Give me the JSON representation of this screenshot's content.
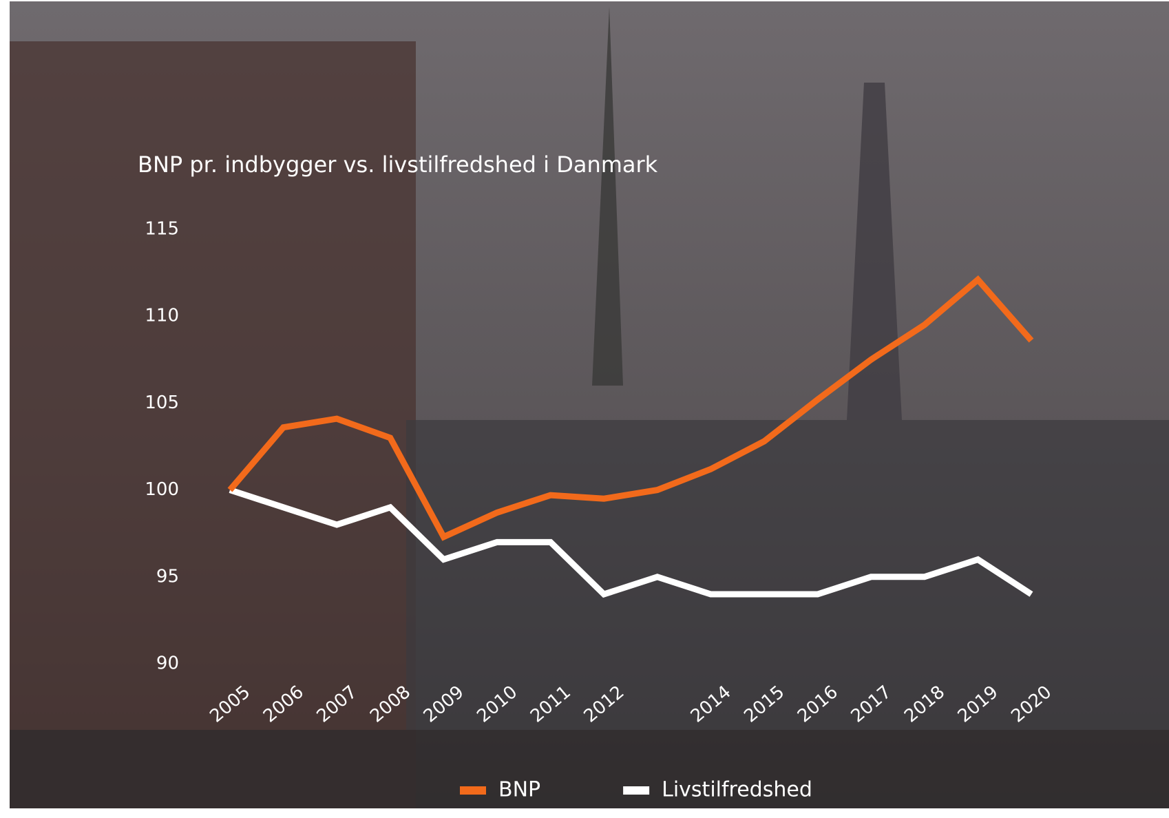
{
  "chart_data": {
    "type": "line",
    "title": "BNP pr. indbygger vs. livstilfredshed i Danmark",
    "categories": [
      "2005",
      "2006",
      "2007",
      "2008",
      "2009",
      "2010",
      "2011",
      "2012",
      null,
      "2014",
      "2015",
      "2016",
      "2017",
      "2018",
      "2019",
      "2020"
    ],
    "series": [
      {
        "name": "BNP",
        "color": "#f26a1b",
        "values": [
          100,
          103.6,
          104.1,
          103.0,
          97.3,
          98.7,
          99.7,
          99.5,
          100.0,
          101.2,
          102.8,
          105.2,
          107.5,
          109.5,
          112.1,
          108.6
        ]
      },
      {
        "name": "Livstilfredshed",
        "color": "#ffffff",
        "values": [
          100,
          99,
          98,
          99,
          96,
          97,
          97,
          94,
          95,
          94,
          94,
          94,
          95,
          95,
          96,
          94
        ]
      }
    ],
    "ylim": [
      90,
      115
    ],
    "yticks": [
      90,
      95,
      100,
      105,
      110,
      115
    ],
    "grid": false
  }
}
